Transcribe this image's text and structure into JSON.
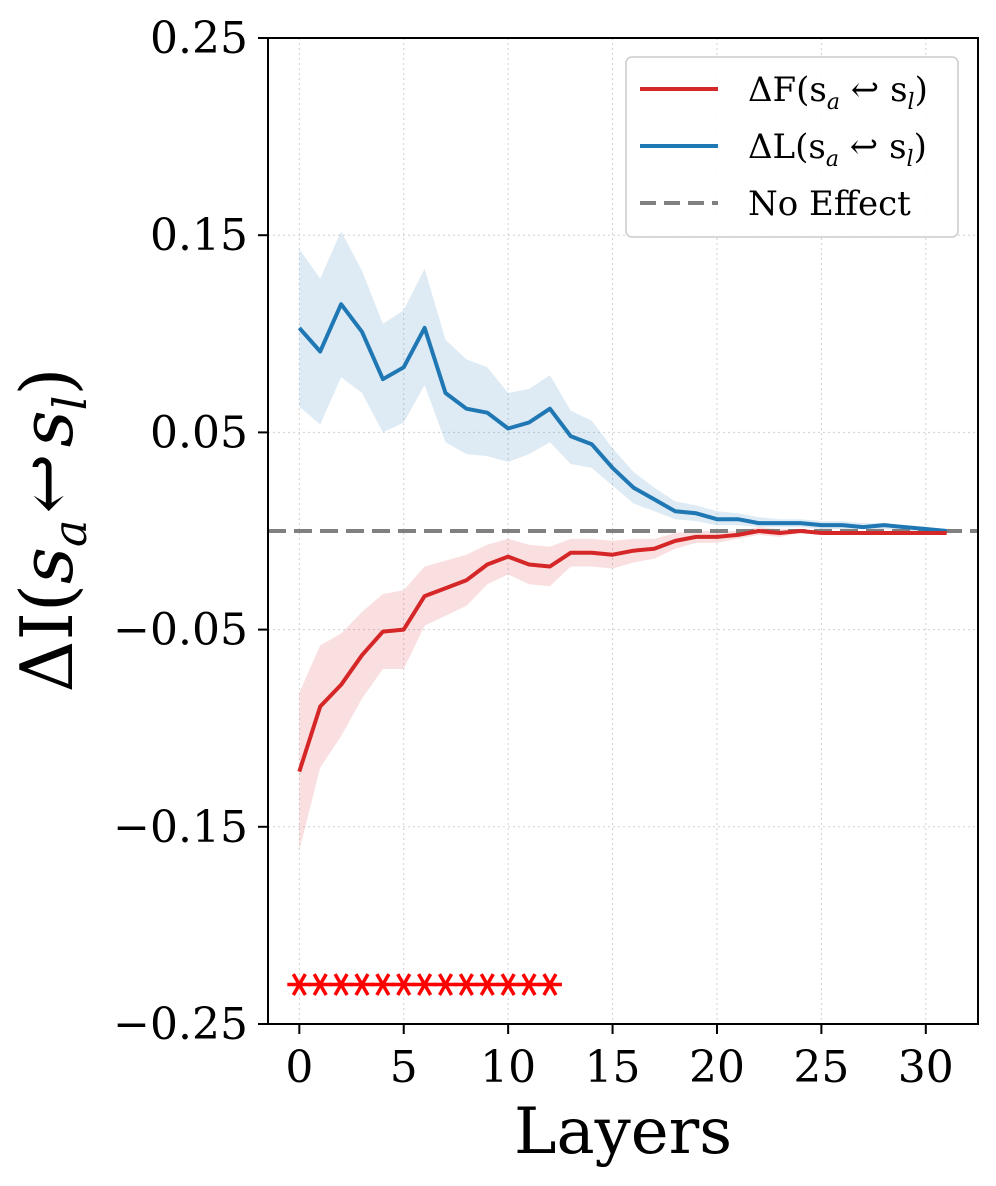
{
  "chart_data": {
    "type": "line",
    "xlabel": "Layers",
    "ylabel": "ΔI(sa ↩ sl)",
    "ylabel_parts": {
      "prefix": "ΔI(",
      "s1": "s",
      "sub1": "a",
      "arrow": "↩",
      "s2": "s",
      "sub2": "l",
      "suffix": ")"
    },
    "xlim": [
      -1.5,
      32.5
    ],
    "ylim": [
      -0.25,
      0.25
    ],
    "xticks": [
      0,
      5,
      10,
      15,
      20,
      25,
      30
    ],
    "xtick_labels": [
      "0",
      "5",
      "10",
      "15",
      "20",
      "25",
      "30"
    ],
    "yticks": [
      0.25,
      0.15,
      0.05,
      -0.05,
      -0.15,
      -0.25
    ],
    "ytick_labels": [
      "0.25",
      "0.15",
      "0.05",
      "−0.05",
      "−0.15",
      "−0.25"
    ],
    "grid": true,
    "x": [
      0,
      1,
      2,
      3,
      4,
      5,
      6,
      7,
      8,
      9,
      10,
      11,
      12,
      13,
      14,
      15,
      16,
      17,
      18,
      19,
      20,
      21,
      22,
      23,
      24,
      25,
      26,
      27,
      28,
      29,
      30,
      31
    ],
    "series": [
      {
        "name": "ΔL(sa ↩ sl)",
        "color": "#1f77b4",
        "values": [
          0.103,
          0.091,
          0.115,
          0.101,
          0.077,
          0.083,
          0.103,
          0.07,
          0.062,
          0.06,
          0.052,
          0.055,
          0.062,
          0.048,
          0.044,
          0.032,
          0.022,
          0.016,
          0.01,
          0.009,
          0.006,
          0.006,
          0.004,
          0.004,
          0.004,
          0.003,
          0.003,
          0.002,
          0.003,
          0.002,
          0.001,
          0.0
        ],
        "upper": [
          0.143,
          0.128,
          0.152,
          0.132,
          0.105,
          0.112,
          0.133,
          0.097,
          0.087,
          0.083,
          0.07,
          0.072,
          0.079,
          0.061,
          0.056,
          0.042,
          0.03,
          0.022,
          0.015,
          0.013,
          0.01,
          0.009,
          0.007,
          0.006,
          0.006,
          0.005,
          0.005,
          0.004,
          0.004,
          0.003,
          0.002,
          0.001
        ],
        "lower": [
          0.063,
          0.054,
          0.078,
          0.07,
          0.05,
          0.055,
          0.074,
          0.045,
          0.039,
          0.038,
          0.035,
          0.039,
          0.045,
          0.034,
          0.032,
          0.023,
          0.014,
          0.01,
          0.006,
          0.005,
          0.003,
          0.003,
          0.002,
          0.002,
          0.002,
          0.001,
          0.001,
          0.001,
          0.001,
          0.0,
          0.0,
          -0.001
        ]
      },
      {
        "name": "ΔF(sa ↩ sl)",
        "color": "#d62728",
        "values": [
          -0.122,
          -0.089,
          -0.078,
          -0.063,
          -0.051,
          -0.05,
          -0.033,
          -0.029,
          -0.025,
          -0.017,
          -0.013,
          -0.017,
          -0.018,
          -0.011,
          -0.011,
          -0.012,
          -0.01,
          -0.009,
          -0.005,
          -0.003,
          -0.003,
          -0.002,
          0.0,
          -0.001,
          0.0,
          -0.001,
          -0.001,
          -0.001,
          -0.001,
          -0.001,
          -0.001,
          -0.001
        ],
        "upper": [
          -0.082,
          -0.058,
          -0.052,
          -0.041,
          -0.032,
          -0.03,
          -0.018,
          -0.015,
          -0.012,
          -0.007,
          -0.004,
          -0.007,
          -0.008,
          -0.004,
          -0.004,
          -0.005,
          -0.004,
          -0.004,
          -0.001,
          0.0,
          0.0,
          0.0,
          0.002,
          0.001,
          0.001,
          0.0,
          0.0,
          0.0,
          0.0,
          0.0,
          0.0,
          0.0
        ],
        "lower": [
          -0.162,
          -0.12,
          -0.104,
          -0.085,
          -0.07,
          -0.07,
          -0.048,
          -0.043,
          -0.038,
          -0.027,
          -0.022,
          -0.027,
          -0.028,
          -0.018,
          -0.018,
          -0.019,
          -0.016,
          -0.014,
          -0.009,
          -0.006,
          -0.006,
          -0.004,
          -0.002,
          -0.003,
          -0.001,
          -0.002,
          -0.002,
          -0.002,
          -0.002,
          -0.002,
          -0.002,
          -0.002
        ]
      }
    ],
    "reference_line": {
      "name": "No Effect",
      "y": 0.0,
      "color": "#808080",
      "style": "dashed"
    },
    "significance_markers": {
      "symbol": "*",
      "color": "#ff0000",
      "y": -0.23,
      "x": [
        0,
        1,
        2,
        3,
        4,
        5,
        6,
        7,
        8,
        9,
        10,
        11,
        12
      ]
    },
    "legend": {
      "position": "top-right",
      "entries": [
        {
          "label": "ΔF(sa ↩ sl)",
          "main": "ΔF(s",
          "sub1": "a",
          "mid": " ↩ s",
          "sub2": "l",
          "end": ")",
          "color": "#d62728",
          "style": "solid"
        },
        {
          "label": "ΔL(sa ↩ sl)",
          "main": "ΔL(s",
          "sub1": "a",
          "mid": " ↩ s",
          "sub2": "l",
          "end": ")",
          "color": "#1f77b4",
          "style": "solid"
        },
        {
          "label": "No Effect",
          "main": "No Effect",
          "color": "#808080",
          "style": "dashed"
        }
      ]
    }
  }
}
